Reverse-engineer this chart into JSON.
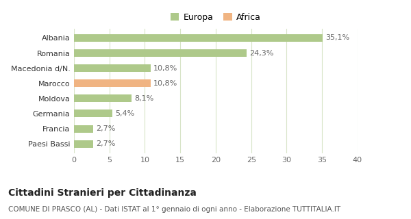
{
  "categories": [
    "Paesi Bassi",
    "Francia",
    "Germania",
    "Moldova",
    "Marocco",
    "Macedonia d/N.",
    "Romania",
    "Albania"
  ],
  "values": [
    2.7,
    2.7,
    5.4,
    8.1,
    10.8,
    10.8,
    24.3,
    35.1
  ],
  "labels": [
    "2,7%",
    "2,7%",
    "5,4%",
    "8,1%",
    "10,8%",
    "10,8%",
    "24,3%",
    "35,1%"
  ],
  "colors": [
    "#aec98a",
    "#aec98a",
    "#aec98a",
    "#aec98a",
    "#f0b482",
    "#aec98a",
    "#aec98a",
    "#aec98a"
  ],
  "legend_items": [
    {
      "label": "Europa",
      "color": "#aec98a"
    },
    {
      "label": "Africa",
      "color": "#f0b482"
    }
  ],
  "xlim": [
    0,
    40
  ],
  "xticks": [
    0,
    5,
    10,
    15,
    20,
    25,
    30,
    35,
    40
  ],
  "title": "Cittadini Stranieri per Cittadinanza",
  "subtitle": "COMUNE DI PRASCO (AL) - Dati ISTAT al 1° gennaio di ogni anno - Elaborazione TUTTITALIA.IT",
  "title_fontsize": 10,
  "subtitle_fontsize": 7.5,
  "bar_height": 0.5,
  "background_color": "#ffffff",
  "grid_color": "#d8e4c8",
  "label_fontsize": 8,
  "tick_fontsize": 8,
  "ytick_fontsize": 8
}
